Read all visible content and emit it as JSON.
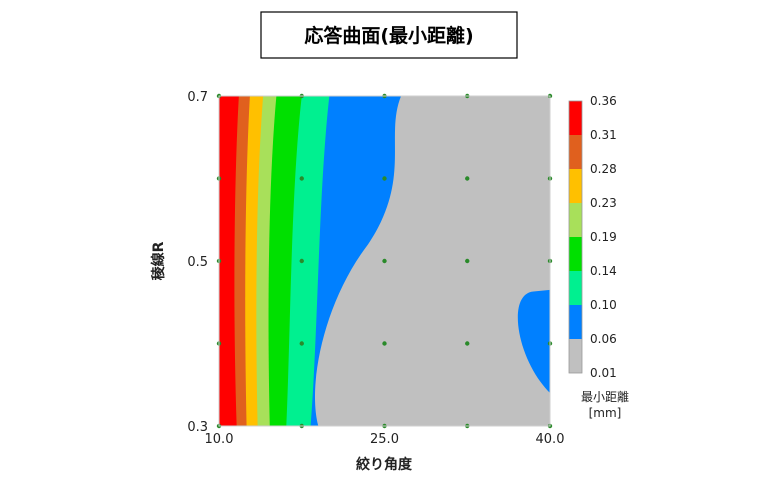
{
  "chart_data": {
    "type": "contour",
    "title": "応答曲面(最小距離)",
    "xlabel": "絞り角度",
    "ylabel": "稜線R",
    "xlim": [
      10.0,
      40.0
    ],
    "ylim": [
      0.3,
      0.7
    ],
    "x_ticks": [
      "10.0",
      "25.0",
      "40.0"
    ],
    "y_ticks": [
      "0.3",
      "0.5",
      "0.7"
    ],
    "legend": {
      "title": "最小距離",
      "unit": "[mm]",
      "levels": [
        "0.36",
        "0.31",
        "0.28",
        "0.23",
        "0.19",
        "0.14",
        "0.10",
        "0.06",
        "0.01"
      ],
      "colors": [
        "#ff0000",
        "#e0601e",
        "#ffc000",
        "#a8e05a",
        "#00e000",
        "#00f090",
        "#0080ff",
        "#c0c0c0"
      ]
    },
    "design_points": [
      [
        10.0,
        0.3
      ],
      [
        17.5,
        0.3
      ],
      [
        25.0,
        0.3
      ],
      [
        32.5,
        0.3
      ],
      [
        40.0,
        0.3
      ],
      [
        10.0,
        0.4
      ],
      [
        17.5,
        0.4
      ],
      [
        25.0,
        0.4
      ],
      [
        32.5,
        0.4
      ],
      [
        40.0,
        0.4
      ],
      [
        10.0,
        0.5
      ],
      [
        17.5,
        0.5
      ],
      [
        25.0,
        0.5
      ],
      [
        32.5,
        0.5
      ],
      [
        40.0,
        0.5
      ],
      [
        10.0,
        0.6
      ],
      [
        17.5,
        0.6
      ],
      [
        25.0,
        0.6
      ],
      [
        32.5,
        0.6
      ],
      [
        40.0,
        0.6
      ],
      [
        10.0,
        0.7
      ],
      [
        17.5,
        0.7
      ],
      [
        25.0,
        0.7
      ],
      [
        32.5,
        0.7
      ],
      [
        40.0,
        0.7
      ]
    ],
    "contour_boundaries": [
      {
        "color": "#e0601e",
        "x_bottom": 11.6,
        "x_mid": 11.3,
        "x_top": 11.8
      },
      {
        "color": "#ffc000",
        "x_bottom": 12.5,
        "x_mid": 12.3,
        "x_top": 12.8
      },
      {
        "color": "#a8e05a",
        "x_bottom": 13.5,
        "x_mid": 13.3,
        "x_top": 14.0
      },
      {
        "color": "#00e000",
        "x_bottom": 14.6,
        "x_mid": 14.4,
        "x_top": 15.2
      },
      {
        "color": "#00f090",
        "x_bottom": 16.1,
        "x_mid": 16.5,
        "x_top": 17.5
      },
      {
        "color": "#0080ff",
        "x_bottom": 18.3,
        "x_mid": 19.0,
        "x_top": 20.0
      },
      {
        "color": "#c0c0c0",
        "x_bottom": 19.0,
        "x_mid": 23.0,
        "x_top": 26.5
      }
    ]
  }
}
